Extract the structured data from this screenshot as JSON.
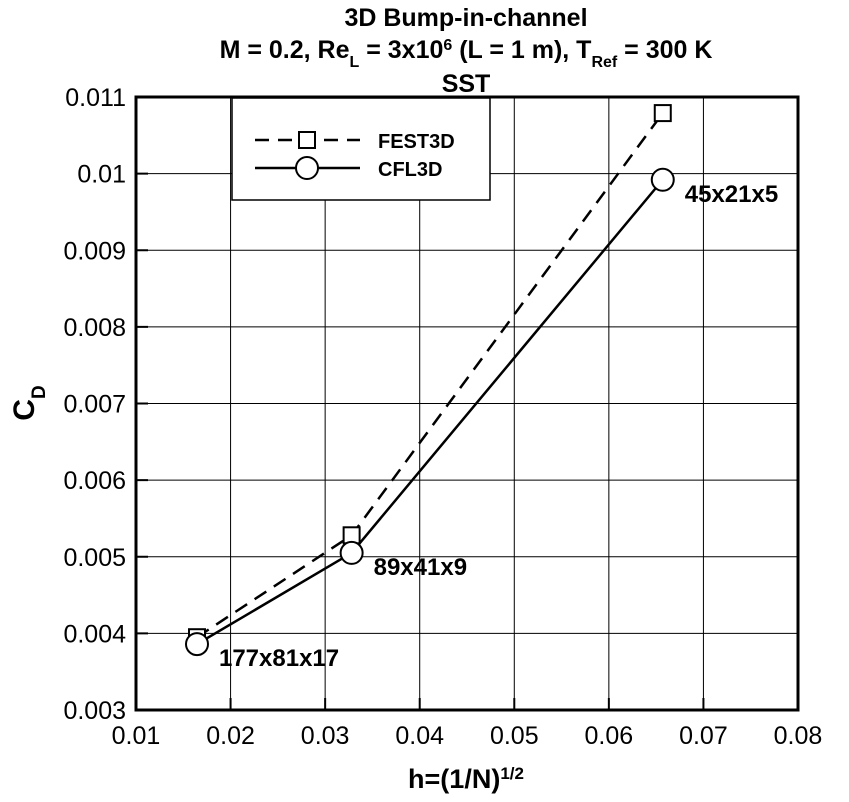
{
  "chart_data": {
    "type": "line",
    "title": [
      [
        {
          "text": "3D Bump-in-channel"
        }
      ],
      [
        {
          "text": "M = 0.2, Re"
        },
        {
          "text": "L",
          "shift": "sub"
        },
        {
          "text": " = 3x10"
        },
        {
          "text": "6",
          "shift": "super"
        },
        {
          "text": " (L = 1 m), T"
        },
        {
          "text": "Ref",
          "shift": "sub"
        },
        {
          "text": " = 300 K"
        }
      ],
      [
        {
          "text": "SST"
        }
      ]
    ],
    "xlabel": [
      {
        "text": "h=(1/N)"
      },
      {
        "text": "1/2",
        "shift": "super"
      }
    ],
    "ylabel": [
      {
        "text": "C"
      },
      {
        "text": "D",
        "shift": "sub"
      }
    ],
    "x": [
      0.01645,
      0.0328,
      0.0657
    ],
    "series": [
      {
        "name": "FEST3D",
        "color": "#000000",
        "dash": true,
        "marker": "square",
        "values": [
          0.00395,
          0.00528,
          0.01079
        ]
      },
      {
        "name": "CFL3D",
        "color": "#000000",
        "dash": false,
        "marker": "circle",
        "values": [
          0.00386,
          0.00505,
          0.00992
        ]
      }
    ],
    "annotations": [
      "177x81x17",
      "89x41x9",
      "45x21x5"
    ],
    "xlim": [
      0.01,
      0.08
    ],
    "xticks": [
      0.01,
      0.02,
      0.03,
      0.04,
      0.05,
      0.06,
      0.07,
      0.08
    ],
    "ylim": [
      0.003,
      0.011
    ],
    "yticks": [
      0.003,
      0.004,
      0.005,
      0.006,
      0.007,
      0.008,
      0.009,
      0.01,
      0.011
    ],
    "grid": true,
    "legend": "top-left"
  }
}
